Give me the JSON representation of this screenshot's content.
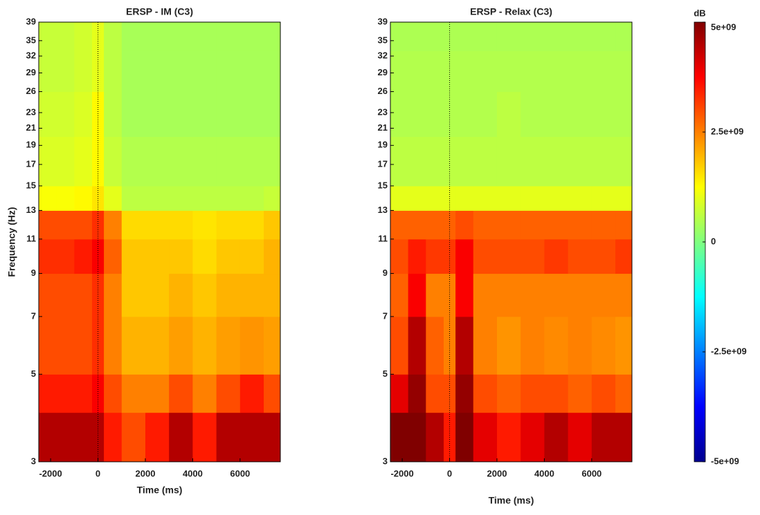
{
  "chart_data": [
    {
      "type": "heatmap",
      "title": "ERSP - IM (C3)",
      "xlabel": "Time (ms)",
      "ylabel": "Frequency (Hz)",
      "x": [
        -2500,
        -1750,
        -1000,
        -250,
        250,
        1000,
        2000,
        3000,
        4000,
        5000,
        6000,
        7000,
        7700
      ],
      "y": [
        3,
        4,
        5,
        7,
        9,
        11,
        13,
        15,
        20,
        26,
        33,
        39
      ],
      "z": [
        [
          4500000000.0,
          4500000000.0,
          4500000000.0,
          4500000000.0,
          3500000000.0,
          3000000000.0,
          3500000000.0,
          4500000000.0,
          3500000000.0,
          4500000000.0,
          4500000000.0,
          4500000000.0
        ],
        [
          3500000000.0,
          3500000000.0,
          3500000000.0,
          3800000000.0,
          3000000000.0,
          2500000000.0,
          2500000000.0,
          3000000000.0,
          2500000000.0,
          3000000000.0,
          3500000000.0,
          3000000000.0
        ],
        [
          3000000000.0,
          3000000000.0,
          3000000000.0,
          3300000000.0,
          2500000000.0,
          2000000000.0,
          2000000000.0,
          2200000000.0,
          2000000000.0,
          2200000000.0,
          2300000000.0,
          2200000000.0
        ],
        [
          3000000000.0,
          3000000000.0,
          3000000000.0,
          3300000000.0,
          2500000000.0,
          1800000000.0,
          1800000000.0,
          2000000000.0,
          1800000000.0,
          2000000000.0,
          2000000000.0,
          2000000000.0
        ],
        [
          3300000000.0,
          3300000000.0,
          3500000000.0,
          3800000000.0,
          2800000000.0,
          1800000000.0,
          1800000000.0,
          1800000000.0,
          1600000000.0,
          1800000000.0,
          1800000000.0,
          2000000000.0
        ],
        [
          3000000000.0,
          3000000000.0,
          3000000000.0,
          3300000000.0,
          2500000000.0,
          1600000000.0,
          1600000000.0,
          1600000000.0,
          1500000000.0,
          1600000000.0,
          1600000000.0,
          1800000000.0
        ],
        [
          1200000000.0,
          1200000000.0,
          1300000000.0,
          1500000000.0,
          1000000000.0,
          600000000.0,
          600000000.0,
          600000000.0,
          600000000.0,
          600000000.0,
          600000000.0,
          700000000.0
        ],
        [
          900000000.0,
          900000000.0,
          1000000000.0,
          1300000000.0,
          700000000.0,
          500000000.0,
          500000000.0,
          500000000.0,
          500000000.0,
          500000000.0,
          500000000.0,
          500000000.0
        ],
        [
          800000000.0,
          800000000.0,
          900000000.0,
          1300000000.0,
          600000000.0,
          400000000.0,
          400000000.0,
          400000000.0,
          400000000.0,
          400000000.0,
          400000000.0,
          400000000.0
        ],
        [
          700000000.0,
          700000000.0,
          800000000.0,
          1000000000.0,
          600000000.0,
          400000000.0,
          400000000.0,
          400000000.0,
          400000000.0,
          400000000.0,
          400000000.0,
          400000000.0
        ],
        [
          700000000.0,
          700000000.0,
          800000000.0,
          1000000000.0,
          600000000.0,
          400000000.0,
          400000000.0,
          400000000.0,
          400000000.0,
          400000000.0,
          400000000.0,
          400000000.0
        ]
      ],
      "xlim": [
        -2500,
        7700
      ],
      "xticks": [
        -2000,
        0,
        2000,
        4000,
        6000
      ],
      "ylim": [
        3,
        39
      ],
      "yticks": [
        3,
        5,
        7,
        9,
        11,
        13,
        15,
        17,
        19,
        21,
        23,
        26,
        29,
        32,
        35,
        39
      ],
      "ylog": true,
      "vline": 0
    },
    {
      "type": "heatmap",
      "title": "ERSP - Relax (C3)",
      "xlabel": "Time (ms)",
      "x": [
        -2500,
        -1750,
        -1000,
        -250,
        250,
        1000,
        2000,
        3000,
        4000,
        5000,
        6000,
        7000,
        7700
      ],
      "y": [
        3,
        4,
        5,
        7,
        9,
        11,
        13,
        15,
        20,
        26,
        33,
        39
      ],
      "z": [
        [
          5000000000.0,
          5000000000.0,
          4500000000.0,
          3500000000.0,
          5000000000.0,
          4000000000.0,
          3500000000.0,
          4000000000.0,
          4500000000.0,
          4000000000.0,
          4500000000.0,
          4500000000.0
        ],
        [
          4000000000.0,
          4800000000.0,
          3000000000.0,
          3000000000.0,
          4800000000.0,
          3000000000.0,
          2800000000.0,
          3000000000.0,
          3000000000.0,
          2800000000.0,
          3000000000.0,
          2800000000.0
        ],
        [
          3000000000.0,
          4500000000.0,
          2800000000.0,
          2500000000.0,
          4500000000.0,
          2500000000.0,
          2300000000.0,
          2500000000.0,
          2400000000.0,
          2500000000.0,
          2400000000.0,
          2300000000.0
        ],
        [
          2800000000.0,
          3800000000.0,
          2500000000.0,
          2500000000.0,
          3800000000.0,
          2500000000.0,
          2500000000.0,
          2500000000.0,
          2500000000.0,
          2500000000.0,
          2500000000.0,
          2500000000.0
        ],
        [
          3000000000.0,
          3500000000.0,
          3200000000.0,
          3200000000.0,
          3800000000.0,
          3000000000.0,
          3000000000.0,
          3000000000.0,
          3200000000.0,
          3000000000.0,
          3000000000.0,
          3200000000.0
        ],
        [
          2800000000.0,
          2800000000.0,
          2800000000.0,
          2800000000.0,
          3000000000.0,
          2800000000.0,
          2800000000.0,
          2800000000.0,
          2800000000.0,
          2800000000.0,
          2800000000.0,
          2800000000.0
        ],
        [
          1000000000.0,
          1000000000.0,
          1000000000.0,
          1000000000.0,
          1000000000.0,
          1000000000.0,
          1000000000.0,
          1000000000.0,
          1000000000.0,
          1000000000.0,
          1000000000.0,
          1000000000.0
        ],
        [
          600000000.0,
          600000000.0,
          600000000.0,
          600000000.0,
          600000000.0,
          600000000.0,
          600000000.0,
          600000000.0,
          600000000.0,
          600000000.0,
          600000000.0,
          600000000.0
        ],
        [
          500000000.0,
          500000000.0,
          500000000.0,
          500000000.0,
          500000000.0,
          500000000.0,
          600000000.0,
          500000000.0,
          500000000.0,
          500000000.0,
          500000000.0,
          500000000.0
        ],
        [
          500000000.0,
          500000000.0,
          500000000.0,
          500000000.0,
          500000000.0,
          500000000.0,
          500000000.0,
          500000000.0,
          500000000.0,
          500000000.0,
          500000000.0,
          500000000.0
        ],
        [
          450000000.0,
          450000000.0,
          450000000.0,
          450000000.0,
          450000000.0,
          450000000.0,
          450000000.0,
          450000000.0,
          450000000.0,
          450000000.0,
          450000000.0,
          450000000.0
        ]
      ],
      "xlim": [
        -2500,
        7700
      ],
      "xticks": [
        -2000,
        0,
        2000,
        4000,
        6000
      ],
      "ylim": [
        3,
        39
      ],
      "yticks": [
        3,
        5,
        7,
        9,
        11,
        13,
        15,
        17,
        19,
        21,
        23,
        26,
        29,
        32,
        35,
        39
      ],
      "ylog": true,
      "vline": 0
    },
    {
      "type": "colorbar",
      "title": "dB",
      "colormap": "jet",
      "clim": [
        -5000000000.0,
        5000000000.0
      ],
      "ticks": [
        {
          "value": 5000000000.0,
          "label": "5e+09"
        },
        {
          "value": 2500000000.0,
          "label": "2.5e+09"
        },
        0,
        {
          "value": -2500000000.0,
          "label": "-2.5e+09"
        },
        {
          "value": -5000000000.0,
          "label": "-5e+09"
        }
      ]
    }
  ]
}
